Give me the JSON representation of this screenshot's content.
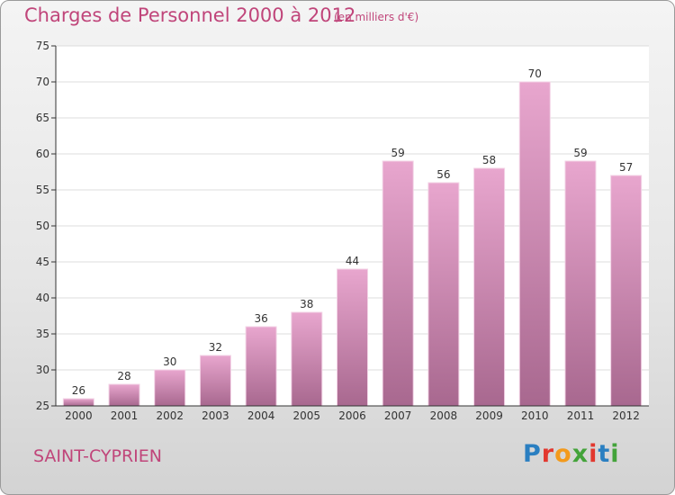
{
  "title": "Charges de Personnel 2000 à 2012",
  "subtitle": "(en milliers d'€)",
  "commune": "SAINT-CYPRIEN",
  "logo": {
    "text": "Proxiti",
    "letter_colors": [
      "#2a7fc1",
      "#e2382f",
      "#f39a1c",
      "#43a33a",
      "#e2382f",
      "#2a7fc1",
      "#43a33a"
    ]
  },
  "colors": {
    "title": "#c0457a",
    "bar_top": "#e8a6ce",
    "bar_bottom": "#a8688f",
    "axis": "#333333",
    "grid": "#dddddd"
  },
  "chart_data": {
    "type": "bar",
    "title": "Charges de Personnel 2000 à 2012",
    "categories": [
      "2000",
      "2001",
      "2002",
      "2003",
      "2004",
      "2005",
      "2006",
      "2007",
      "2008",
      "2009",
      "2010",
      "2011",
      "2012"
    ],
    "values": [
      26,
      28,
      30,
      32,
      36,
      38,
      44,
      59,
      56,
      58,
      70,
      59,
      57
    ],
    "ylim": [
      25,
      75
    ],
    "yticks": [
      25,
      30,
      35,
      40,
      45,
      50,
      55,
      60,
      65,
      70,
      75
    ],
    "xlabel": "",
    "ylabel": "",
    "grid": true,
    "data_labels": true
  }
}
